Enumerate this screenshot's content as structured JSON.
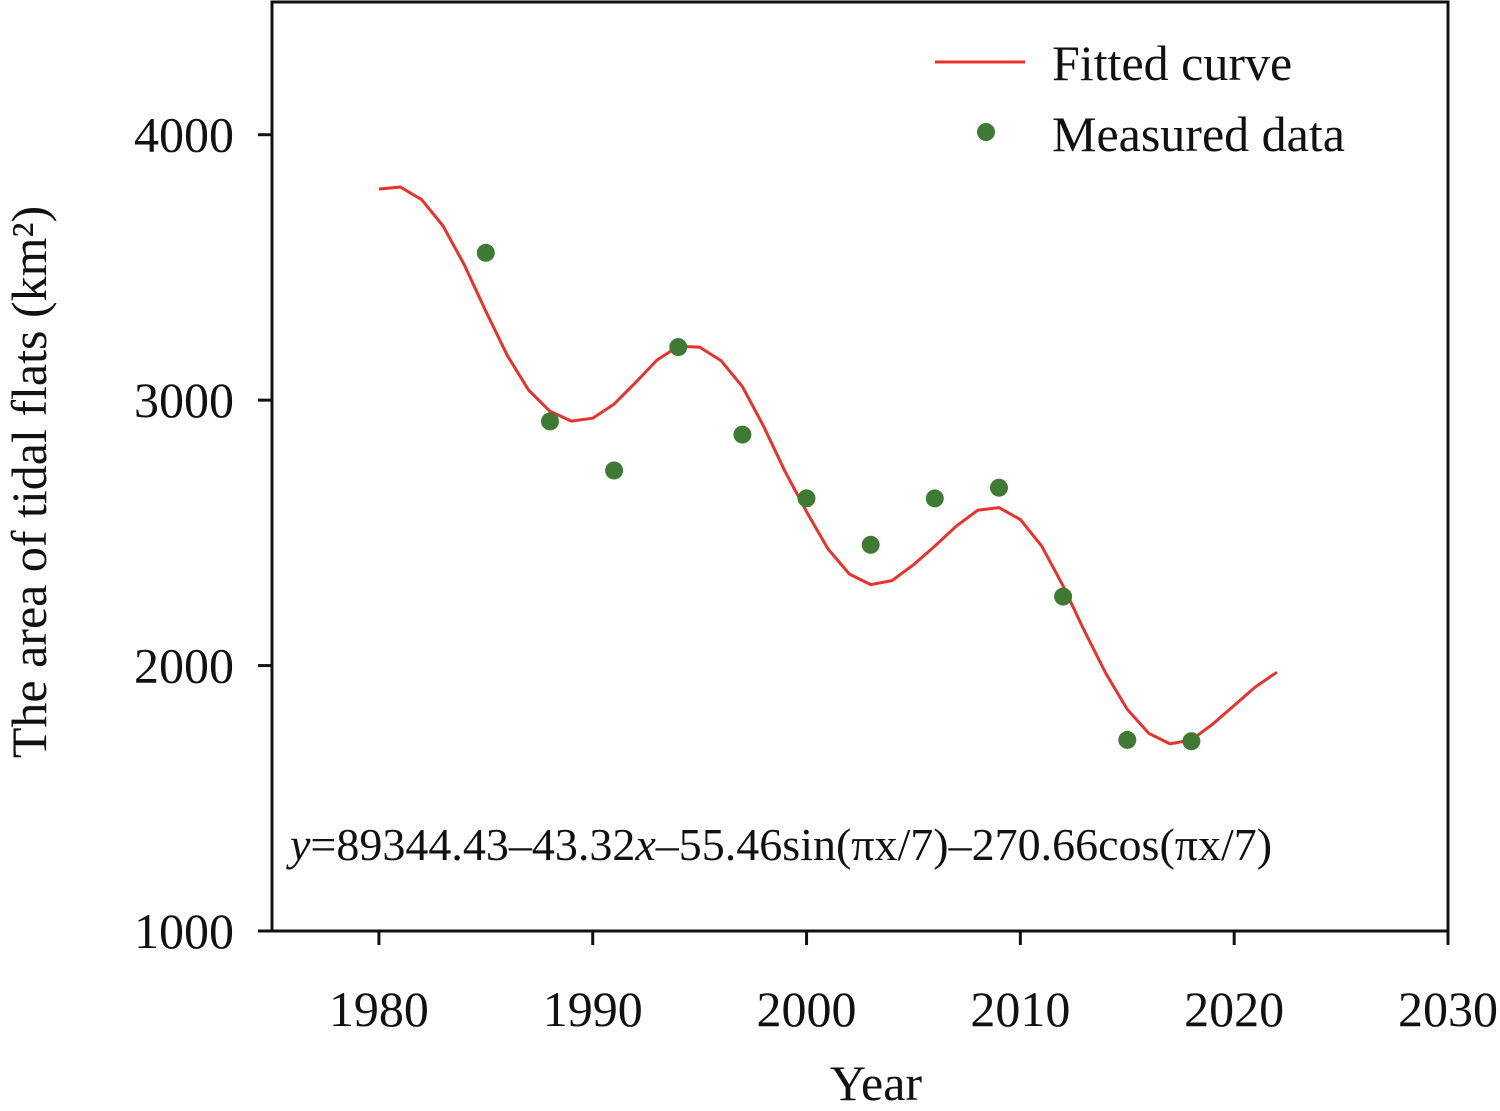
{
  "chart_data": {
    "type": "line",
    "xlabel": "Year",
    "ylabel": "The area of tidal flats (km²)",
    "xlim": [
      1975,
      2030
    ],
    "ylim": [
      1000,
      4500
    ],
    "xticks": [
      1980,
      1990,
      2000,
      2010,
      2020,
      2030
    ],
    "yticks": [
      1000,
      2000,
      3000,
      4000
    ],
    "xtick_labels": [
      "1980",
      "1990",
      "2000",
      "2010",
      "2020",
      "2030"
    ],
    "ytick_labels": [
      "1000",
      "2000",
      "3000",
      "4000"
    ],
    "grid": false,
    "legend": {
      "placement": "top-right"
    },
    "colors": {
      "fitted": "#e8322b",
      "measured": "#3e7a34"
    },
    "series": [
      {
        "name": "Fitted curve",
        "kind": "line",
        "x": [
          1980,
          1981,
          1982,
          1983,
          1984,
          1985,
          1986,
          1987,
          1988,
          1989,
          1990,
          1991,
          1992,
          1993,
          1994,
          1995,
          1996,
          1997,
          1998,
          1999,
          2000,
          2001,
          2002,
          2003,
          2004,
          2005,
          2006,
          2007,
          2008,
          2009,
          2010,
          2011,
          2012,
          2013,
          2014,
          2015,
          2016,
          2017,
          2018,
          2019,
          2020,
          2021,
          2022
        ],
        "y": [
          3795,
          3803,
          3755,
          3656,
          3509,
          3335,
          3169,
          3038,
          2958,
          2921,
          2932,
          2985,
          3066,
          3151,
          3203,
          3200,
          3149,
          3051,
          2900,
          2730,
          2580,
          2440,
          2345,
          2305,
          2320,
          2380,
          2450,
          2525,
          2585,
          2595,
          2550,
          2450,
          2300,
          2130,
          1970,
          1835,
          1745,
          1705,
          1720,
          1780,
          1850,
          1920,
          1975
        ]
      },
      {
        "name": "Measured data",
        "kind": "scatter",
        "x": [
          1985,
          1988,
          1991,
          1994,
          1997,
          2000,
          2003,
          2006,
          2009,
          2012,
          2015,
          2018
        ],
        "y": [
          3555,
          2920,
          2735,
          3200,
          2870,
          2630,
          2455,
          2630,
          2670,
          2260,
          1720,
          1715
        ]
      }
    ],
    "annotation": {
      "y_var": "y",
      "part1": "=89344.43–43.32",
      "x_var": "x",
      "part2": "–55.46sin(πx/7)–270.66cos(πx/7)"
    }
  }
}
